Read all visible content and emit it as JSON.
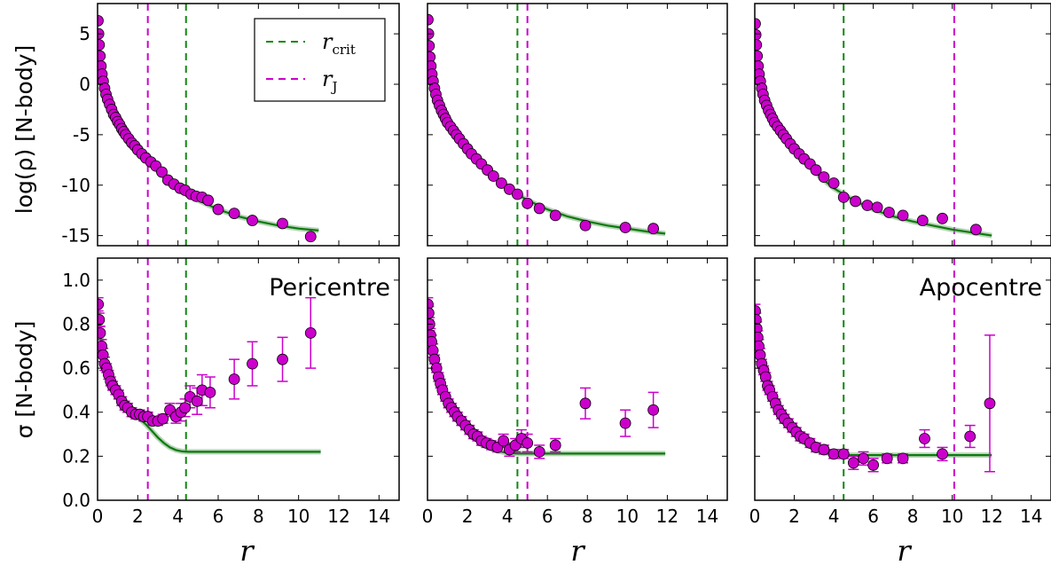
{
  "figure": {
    "ylabel_top": "log(ρ) [N-body]",
    "ylabel_bottom": "σ [N-body]",
    "xlabel": "r",
    "colors": {
      "model": "#0a7a0a",
      "band": "#7fae7f",
      "points": "#cc00cc",
      "rcrit": "#118811",
      "rJ": "#cc00cc"
    },
    "legend": [
      {
        "symbol": "r",
        "sub": "crit",
        "color": "#118811",
        "style": "dashed"
      },
      {
        "symbol": "r",
        "sub": "J",
        "color": "#cc00cc",
        "style": "dashed"
      }
    ]
  },
  "chart_data": [
    {
      "type": "scatter",
      "panel": "top-left",
      "xlim": [
        0,
        15
      ],
      "ylim": [
        -16,
        8
      ],
      "xticks": [
        0,
        2,
        4,
        6,
        8,
        10,
        12,
        14
      ],
      "yticks": [
        5,
        0,
        -5,
        -10,
        -15
      ],
      "ylabel": "log(ρ) [N-body]",
      "xlabel": "r",
      "vlines": {
        "rcrit": 4.4,
        "rJ": 2.5
      },
      "curve": {
        "name": "model",
        "x": [
          0.02,
          0.1,
          0.25,
          0.5,
          1.0,
          1.5,
          2.0,
          2.5,
          3.0,
          3.5,
          4.0,
          5.0,
          6.0,
          7.0,
          8.0,
          9.0,
          10.0,
          11.0
        ],
        "y": [
          5.5,
          2.8,
          0.5,
          -1.5,
          -3.6,
          -5.1,
          -6.4,
          -7.6,
          -8.6,
          -9.5,
          -10.3,
          -11.5,
          -12.4,
          -13.1,
          -13.6,
          -14.0,
          -14.3,
          -14.5
        ]
      },
      "points": {
        "x": [
          0.02,
          0.05,
          0.08,
          0.12,
          0.17,
          0.22,
          0.28,
          0.35,
          0.42,
          0.5,
          0.6,
          0.7,
          0.8,
          0.9,
          1.0,
          1.1,
          1.2,
          1.3,
          1.4,
          1.55,
          1.7,
          1.85,
          2.0,
          2.2,
          2.4,
          2.65,
          2.9,
          3.2,
          3.5,
          3.8,
          4.1,
          4.35,
          4.65,
          4.9,
          5.2,
          5.5,
          6.0,
          6.8,
          7.7,
          9.2,
          10.6
        ],
        "y": [
          6.3,
          5.0,
          3.9,
          2.8,
          1.8,
          1.0,
          0.3,
          -0.4,
          -1.0,
          -1.5,
          -2.0,
          -2.5,
          -3.0,
          -3.3,
          -3.7,
          -4.0,
          -4.4,
          -4.7,
          -5.0,
          -5.4,
          -5.8,
          -6.1,
          -6.5,
          -6.9,
          -7.3,
          -7.7,
          -8.1,
          -8.7,
          -9.5,
          -9.9,
          -10.3,
          -10.5,
          -10.9,
          -11.1,
          -11.2,
          -11.5,
          -12.4,
          -12.8,
          -13.5,
          -13.8,
          -15.1
        ]
      }
    },
    {
      "type": "scatter",
      "panel": "top-middle",
      "xlim": [
        0,
        15
      ],
      "ylim": [
        -16,
        8
      ],
      "xticks": [
        0,
        2,
        4,
        6,
        8,
        10,
        12,
        14
      ],
      "yticks": [
        5,
        0,
        -5,
        -10,
        -15
      ],
      "xlabel": "r",
      "vlines": {
        "rcrit": 4.5,
        "rJ": 5.0
      },
      "curve": {
        "name": "model",
        "x": [
          0.02,
          0.1,
          0.25,
          0.5,
          1.0,
          1.5,
          2.0,
          2.5,
          3.0,
          3.5,
          4.0,
          5.0,
          6.0,
          7.0,
          8.0,
          9.0,
          10.0,
          11.0,
          11.9
        ],
        "y": [
          5.5,
          2.8,
          0.5,
          -1.5,
          -3.6,
          -5.1,
          -6.4,
          -7.6,
          -8.6,
          -9.5,
          -10.3,
          -11.5,
          -12.4,
          -13.1,
          -13.6,
          -14.0,
          -14.3,
          -14.6,
          -14.8
        ]
      },
      "points": {
        "x": [
          0.02,
          0.05,
          0.08,
          0.12,
          0.17,
          0.22,
          0.28,
          0.35,
          0.42,
          0.5,
          0.6,
          0.7,
          0.8,
          0.9,
          1.0,
          1.15,
          1.3,
          1.45,
          1.6,
          1.8,
          2.0,
          2.2,
          2.45,
          2.7,
          3.0,
          3.3,
          3.7,
          4.1,
          4.5,
          5.0,
          5.6,
          6.4,
          7.9,
          9.9,
          11.3
        ],
        "y": [
          6.4,
          5.0,
          3.8,
          2.7,
          1.8,
          1.0,
          0.3,
          -0.4,
          -1.0,
          -1.6,
          -2.1,
          -2.6,
          -3.0,
          -3.4,
          -3.8,
          -4.2,
          -4.6,
          -5.0,
          -5.4,
          -5.9,
          -6.4,
          -6.9,
          -7.4,
          -7.9,
          -8.5,
          -9.1,
          -9.8,
          -10.4,
          -10.9,
          -11.8,
          -12.3,
          -13.0,
          -14.0,
          -14.2,
          -14.3
        ]
      }
    },
    {
      "type": "scatter",
      "panel": "top-right",
      "xlim": [
        0,
        15
      ],
      "ylim": [
        -16,
        8
      ],
      "xticks": [
        0,
        2,
        4,
        6,
        8,
        10,
        12,
        14
      ],
      "yticks": [
        5,
        0,
        -5,
        -10,
        -15
      ],
      "xlabel": "r",
      "vlines": {
        "rcrit": 4.5,
        "rJ": 10.1
      },
      "curve": {
        "name": "model",
        "x": [
          0.02,
          0.1,
          0.25,
          0.5,
          1.0,
          1.5,
          2.0,
          2.5,
          3.0,
          3.5,
          4.0,
          5.0,
          6.0,
          7.0,
          8.0,
          9.0,
          10.0,
          11.0,
          12.0
        ],
        "y": [
          5.5,
          2.8,
          0.5,
          -1.5,
          -3.6,
          -5.1,
          -6.4,
          -7.6,
          -8.6,
          -9.5,
          -10.3,
          -11.5,
          -12.4,
          -13.1,
          -13.6,
          -14.0,
          -14.4,
          -14.7,
          -15.0
        ]
      },
      "points": {
        "x": [
          0.02,
          0.05,
          0.08,
          0.12,
          0.17,
          0.22,
          0.28,
          0.35,
          0.42,
          0.5,
          0.6,
          0.7,
          0.8,
          0.9,
          1.0,
          1.15,
          1.3,
          1.45,
          1.6,
          1.8,
          2.0,
          2.25,
          2.5,
          2.8,
          3.1,
          3.5,
          4.0,
          4.5,
          5.1,
          5.7,
          6.2,
          6.8,
          7.5,
          8.5,
          9.5,
          11.2
        ],
        "y": [
          6.0,
          4.9,
          3.9,
          2.8,
          1.8,
          1.0,
          0.3,
          -0.4,
          -1.0,
          -1.6,
          -2.1,
          -2.6,
          -3.0,
          -3.4,
          -3.8,
          -4.2,
          -4.6,
          -5.0,
          -5.4,
          -5.9,
          -6.4,
          -6.9,
          -7.4,
          -7.9,
          -8.5,
          -9.2,
          -9.8,
          -11.2,
          -11.6,
          -12.0,
          -12.2,
          -12.7,
          -13.0,
          -13.5,
          -13.3,
          -14.4
        ]
      }
    },
    {
      "type": "scatter",
      "panel": "bottom-left",
      "annotation": "Pericentre",
      "xlim": [
        0,
        15
      ],
      "ylim": [
        0,
        1.1
      ],
      "xticks": [
        0,
        2,
        4,
        6,
        8,
        10,
        12,
        14
      ],
      "yticks": [
        0.0,
        0.2,
        0.4,
        0.6,
        0.8,
        1.0
      ],
      "ylabel": "σ [N-body]",
      "xlabel": "r",
      "vlines": {
        "rcrit": 4.4,
        "rJ": 2.5
      },
      "curve": {
        "name": "model",
        "x": [
          0.0,
          0.1,
          0.2,
          0.35,
          0.5,
          0.7,
          0.9,
          1.2,
          1.5,
          1.8,
          2.1,
          2.4,
          2.7,
          3.0,
          3.3,
          3.6,
          3.9,
          4.2,
          4.5,
          5.0,
          6.0,
          8.0,
          10.0,
          11.1
        ],
        "y": [
          0.9,
          0.8,
          0.72,
          0.64,
          0.58,
          0.52,
          0.48,
          0.44,
          0.41,
          0.39,
          0.37,
          0.345,
          0.315,
          0.285,
          0.26,
          0.24,
          0.228,
          0.222,
          0.22,
          0.22,
          0.22,
          0.22,
          0.22,
          0.22
        ]
      },
      "points": {
        "x": [
          0.03,
          0.08,
          0.13,
          0.2,
          0.27,
          0.35,
          0.45,
          0.55,
          0.65,
          0.75,
          0.9,
          1.05,
          1.2,
          1.35,
          1.5,
          1.7,
          1.9,
          2.1,
          2.3,
          2.5,
          2.75,
          3.0,
          3.25,
          3.6,
          3.9,
          4.15,
          4.35,
          4.6,
          4.95,
          5.2,
          5.6,
          6.8,
          7.7,
          9.2,
          10.6
        ],
        "y": [
          0.89,
          0.82,
          0.76,
          0.7,
          0.66,
          0.62,
          0.6,
          0.57,
          0.54,
          0.52,
          0.5,
          0.48,
          0.45,
          0.43,
          0.42,
          0.4,
          0.39,
          0.39,
          0.38,
          0.38,
          0.36,
          0.36,
          0.37,
          0.41,
          0.38,
          0.4,
          0.42,
          0.47,
          0.45,
          0.5,
          0.49,
          0.55,
          0.62,
          0.64,
          0.76
        ],
        "err": [
          0.03,
          0.03,
          0.03,
          0.03,
          0.03,
          0.03,
          0.02,
          0.02,
          0.02,
          0.02,
          0.02,
          0.02,
          0.02,
          0.02,
          0.02,
          0.02,
          0.02,
          0.02,
          0.02,
          0.02,
          0.02,
          0.02,
          0.02,
          0.03,
          0.03,
          0.04,
          0.04,
          0.05,
          0.06,
          0.07,
          0.07,
          0.09,
          0.1,
          0.1,
          0.16
        ]
      }
    },
    {
      "type": "scatter",
      "panel": "bottom-middle",
      "xlim": [
        0,
        15
      ],
      "ylim": [
        0,
        1.1
      ],
      "xticks": [
        0,
        2,
        4,
        6,
        8,
        10,
        12,
        14
      ],
      "yticks": [
        0.0,
        0.2,
        0.4,
        0.6,
        0.8,
        1.0
      ],
      "xlabel": "r",
      "vlines": {
        "rcrit": 4.5,
        "rJ": 5.0
      },
      "curve": {
        "name": "model",
        "x": [
          0.0,
          0.1,
          0.2,
          0.35,
          0.5,
          0.7,
          0.9,
          1.2,
          1.5,
          1.8,
          2.1,
          2.4,
          2.8,
          3.2,
          3.6,
          4.0,
          4.5,
          5.0,
          6.0,
          8.0,
          10.0,
          11.9
        ],
        "y": [
          0.88,
          0.8,
          0.72,
          0.64,
          0.58,
          0.52,
          0.47,
          0.42,
          0.38,
          0.34,
          0.31,
          0.28,
          0.255,
          0.235,
          0.222,
          0.215,
          0.212,
          0.212,
          0.212,
          0.212,
          0.212,
          0.212
        ]
      },
      "points": {
        "x": [
          0.02,
          0.06,
          0.1,
          0.15,
          0.2,
          0.27,
          0.35,
          0.45,
          0.55,
          0.65,
          0.75,
          0.9,
          1.05,
          1.2,
          1.35,
          1.5,
          1.7,
          1.9,
          2.1,
          2.3,
          2.5,
          2.7,
          2.95,
          3.2,
          3.5,
          3.8,
          4.1,
          4.4,
          4.7,
          5.0,
          5.6,
          6.4,
          7.9,
          9.9,
          11.3
        ],
        "y": [
          0.89,
          0.85,
          0.8,
          0.75,
          0.72,
          0.68,
          0.64,
          0.6,
          0.56,
          0.53,
          0.5,
          0.47,
          0.44,
          0.42,
          0.4,
          0.38,
          0.36,
          0.34,
          0.32,
          0.3,
          0.29,
          0.27,
          0.26,
          0.25,
          0.24,
          0.27,
          0.23,
          0.25,
          0.28,
          0.26,
          0.22,
          0.25,
          0.44,
          0.35,
          0.41
        ],
        "err": [
          0.03,
          0.03,
          0.03,
          0.03,
          0.03,
          0.03,
          0.02,
          0.02,
          0.02,
          0.02,
          0.02,
          0.02,
          0.02,
          0.02,
          0.02,
          0.02,
          0.02,
          0.02,
          0.02,
          0.02,
          0.02,
          0.02,
          0.02,
          0.02,
          0.02,
          0.03,
          0.03,
          0.03,
          0.04,
          0.04,
          0.03,
          0.03,
          0.07,
          0.06,
          0.08
        ]
      }
    },
    {
      "type": "scatter",
      "panel": "bottom-right",
      "annotation": "Apocentre",
      "xlim": [
        0,
        15
      ],
      "ylim": [
        0,
        1.1
      ],
      "xticks": [
        0,
        2,
        4,
        6,
        8,
        10,
        12,
        14
      ],
      "yticks": [
        0.0,
        0.2,
        0.4,
        0.6,
        0.8,
        1.0
      ],
      "xlabel": "r",
      "vlines": {
        "rcrit": 4.5,
        "rJ": 10.1
      },
      "curve": {
        "name": "model",
        "x": [
          0.0,
          0.1,
          0.2,
          0.35,
          0.5,
          0.7,
          0.9,
          1.2,
          1.5,
          1.8,
          2.1,
          2.4,
          2.8,
          3.2,
          3.6,
          4.0,
          4.5,
          5.0,
          6.0,
          8.0,
          10.0,
          12.0
        ],
        "y": [
          0.88,
          0.79,
          0.71,
          0.63,
          0.57,
          0.51,
          0.46,
          0.41,
          0.37,
          0.33,
          0.3,
          0.27,
          0.245,
          0.225,
          0.215,
          0.208,
          0.205,
          0.205,
          0.205,
          0.205,
          0.205,
          0.205
        ]
      },
      "points": {
        "x": [
          0.02,
          0.06,
          0.1,
          0.15,
          0.2,
          0.27,
          0.35,
          0.45,
          0.55,
          0.65,
          0.75,
          0.9,
          1.05,
          1.2,
          1.35,
          1.5,
          1.7,
          1.9,
          2.1,
          2.3,
          2.5,
          2.8,
          3.1,
          3.5,
          4.0,
          4.5,
          5.0,
          5.5,
          6.0,
          6.7,
          7.5,
          8.6,
          9.5,
          10.9,
          11.9
        ],
        "y": [
          0.86,
          0.82,
          0.78,
          0.74,
          0.7,
          0.66,
          0.62,
          0.59,
          0.56,
          0.52,
          0.5,
          0.47,
          0.44,
          0.41,
          0.39,
          0.37,
          0.35,
          0.33,
          0.31,
          0.29,
          0.28,
          0.26,
          0.24,
          0.23,
          0.21,
          0.21,
          0.17,
          0.19,
          0.16,
          0.19,
          0.19,
          0.28,
          0.21,
          0.29,
          0.44
        ],
        "err": [
          0.03,
          0.03,
          0.03,
          0.03,
          0.03,
          0.03,
          0.02,
          0.02,
          0.02,
          0.02,
          0.02,
          0.02,
          0.02,
          0.02,
          0.02,
          0.02,
          0.02,
          0.02,
          0.02,
          0.02,
          0.02,
          0.02,
          0.02,
          0.02,
          0.02,
          0.02,
          0.03,
          0.03,
          0.03,
          0.02,
          0.02,
          0.04,
          0.03,
          0.05,
          0.31
        ]
      }
    }
  ]
}
